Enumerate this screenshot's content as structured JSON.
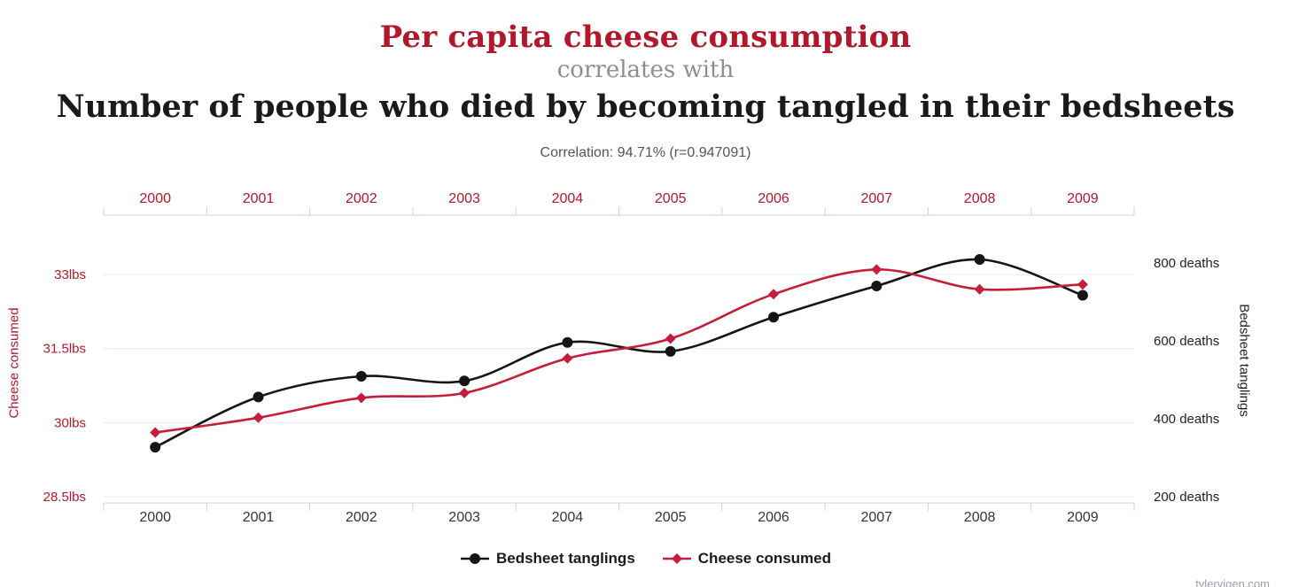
{
  "header": {
    "title_red": "Per capita cheese consumption",
    "subtitle": "correlates with",
    "title_black": "Number of people who died by becoming tangled in their bedsheets",
    "correlation": "Correlation: 94.71% (r=0.947091)"
  },
  "colors": {
    "accent_red": "#b2182b",
    "series_red": "#c41e3a",
    "series_black": "#151515",
    "grid": "#e3eaf2",
    "axis": "#c9d3dd",
    "tick_dark": "#333333",
    "subtitle_gray": "#8e8e8e",
    "correlation_gray": "#555555"
  },
  "chart_data": {
    "type": "line",
    "title": "Per capita cheese consumption correlates with Number of people who died by becoming tangled in their bedsheets",
    "x": [
      2000,
      2001,
      2002,
      2003,
      2004,
      2005,
      2006,
      2007,
      2008,
      2009
    ],
    "series": [
      {
        "name": "Bedsheet tanglings",
        "axis": "right",
        "color": "#151515",
        "marker": "circle",
        "values": [
          327,
          456,
          509,
          497,
          596,
          573,
          661,
          741,
          809,
          717
        ]
      },
      {
        "name": "Cheese consumed",
        "axis": "left",
        "color": "#c41e3a",
        "marker": "diamond",
        "values": [
          29.8,
          30.1,
          30.5,
          30.6,
          31.3,
          31.7,
          32.6,
          33.1,
          32.7,
          32.8
        ]
      }
    ],
    "left_axis": {
      "label": "Cheese consumed",
      "ticks": [
        28.5,
        30,
        31.5,
        33
      ],
      "tick_labels": [
        "28.5lbs",
        "30lbs",
        "31.5lbs",
        "33lbs"
      ],
      "range": [
        28.5,
        33.3
      ]
    },
    "right_axis": {
      "label": "Bedsheet tanglings",
      "ticks": [
        200,
        400,
        600,
        800
      ],
      "tick_labels": [
        "200 deaths",
        "400 deaths",
        "600 deaths",
        "800 deaths"
      ],
      "range": [
        200,
        830
      ]
    },
    "grid": true,
    "legend_position": "bottom"
  },
  "legend": {
    "items": [
      {
        "label": "Bedsheet tanglings",
        "marker": "circle",
        "color": "#151515"
      },
      {
        "label": "Cheese consumed",
        "marker": "diamond",
        "color": "#c41e3a"
      }
    ]
  },
  "watermark": "tylervigen.com"
}
